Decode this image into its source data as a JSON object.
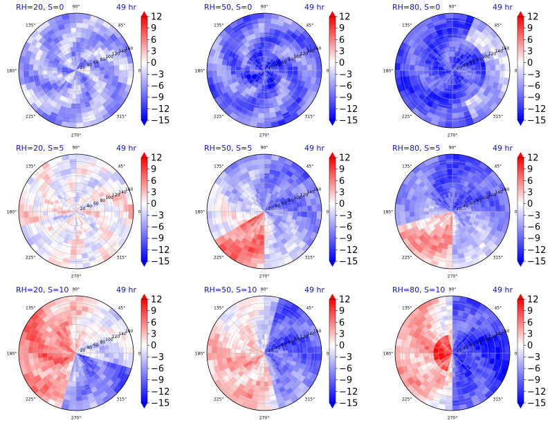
{
  "figure": {
    "time_label": "49 hr",
    "angle_labels": [
      "90°",
      "45°",
      "0°",
      "315°",
      "270°",
      "225°",
      "180°",
      "135°"
    ],
    "radius_labels": [
      "20",
      "40",
      "60",
      "80",
      "100",
      "120",
      "140",
      "160"
    ],
    "colorbar_ticks": [
      "12",
      "9",
      "6",
      "3",
      "0",
      "−3",
      "−6",
      "−9",
      "−12",
      "−15"
    ],
    "colormap": {
      "negative": "#0000ff",
      "zero": "#ffffff",
      "positive": "#ff0000"
    }
  },
  "chart_data": [
    {
      "type": "heatmap",
      "projection": "polar",
      "title": "RH=20, S=0",
      "time": "49 hr",
      "color_range": [
        -15,
        12
      ],
      "r_range": [
        0,
        160
      ]
    },
    {
      "type": "heatmap",
      "projection": "polar",
      "title": "RH=50, S=0",
      "time": "49 hr",
      "color_range": [
        -15,
        12
      ],
      "r_range": [
        0,
        160
      ]
    },
    {
      "type": "heatmap",
      "projection": "polar",
      "title": "RH=80, S=0",
      "time": "49 hr",
      "color_range": [
        -15,
        12
      ],
      "r_range": [
        0,
        160
      ]
    },
    {
      "type": "heatmap",
      "projection": "polar",
      "title": "RH=20, S=5",
      "time": "49 hr",
      "color_range": [
        -15,
        12
      ],
      "r_range": [
        0,
        160
      ]
    },
    {
      "type": "heatmap",
      "projection": "polar",
      "title": "RH=50, S=5",
      "time": "49 hr",
      "color_range": [
        -15,
        12
      ],
      "r_range": [
        0,
        160
      ]
    },
    {
      "type": "heatmap",
      "projection": "polar",
      "title": "RH=80, S=5",
      "time": "49 hr",
      "color_range": [
        -15,
        12
      ],
      "r_range": [
        0,
        160
      ]
    },
    {
      "type": "heatmap",
      "projection": "polar",
      "title": "RH=20, S=10",
      "time": "49 hr",
      "color_range": [
        -15,
        12
      ],
      "r_range": [
        0,
        160
      ]
    },
    {
      "type": "heatmap",
      "projection": "polar",
      "title": "RH=50, S=10",
      "time": "49 hr",
      "color_range": [
        -15,
        12
      ],
      "r_range": [
        0,
        160
      ]
    },
    {
      "type": "heatmap",
      "projection": "polar",
      "title": "RH=80, S=10",
      "time": "49 hr",
      "color_range": [
        -15,
        12
      ],
      "r_range": [
        0,
        160
      ]
    }
  ]
}
